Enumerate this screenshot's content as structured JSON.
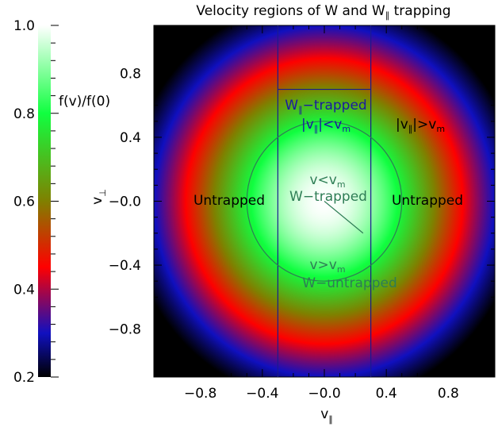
{
  "chart_data": {
    "type": "heatmap",
    "title": "Velocity regions of W and W∥ trapping",
    "title_main": "Velocity regions of W and W",
    "title_sub": "∥",
    "title_tail": " trapping",
    "xlabel_main": "v",
    "xlabel_sub": "∥",
    "ylabel_main": "v",
    "ylabel_sub": "⊥",
    "xlim": [
      -1.1,
      1.1
    ],
    "ylim": [
      -1.1,
      1.1
    ],
    "x_ticks": [
      -0.8,
      -0.4,
      0.0,
      0.4,
      0.8
    ],
    "x_tick_labels": [
      "−0.8",
      "−0.4",
      "−0.0",
      "0.4",
      "0.8"
    ],
    "y_ticks": [
      0.8,
      0.4,
      0.0,
      -0.4,
      -0.8
    ],
    "y_tick_labels": [
      "0.8",
      "0.4",
      "−0.0",
      "−0.4",
      "−0.8"
    ],
    "field": "f(v)/f(0) = exp(-(v∥² + v⊥²))",
    "colorbar": {
      "label": "f(v)/f(0)",
      "range": [
        0.2,
        1.0
      ],
      "ticks": [
        1.0,
        0.8,
        0.6,
        0.4,
        0.2
      ],
      "tick_labels": [
        "1.0",
        "0.8",
        "0.6",
        "0.4",
        "0.2"
      ],
      "colors": [
        "#000000",
        "#1010c0",
        "#ff0000",
        "#808000",
        "#10ff40",
        "#ffffff"
      ],
      "color_stops": [
        0.2,
        0.3,
        0.45,
        0.6,
        0.8,
        1.0
      ]
    },
    "regions": {
      "parallel_trap_bounds": [
        -0.3,
        0.3
      ],
      "parallel_trap_top": 0.7,
      "circle_radius": 0.5,
      "circle_radius_line": {
        "from": [
          0.0,
          0.0
        ],
        "to": [
          0.25,
          -0.2
        ]
      }
    },
    "annotations": {
      "wpar_trapped_main": "W",
      "wpar_trapped_sub": "∥",
      "wpar_trapped_tail": "−trapped",
      "vpar_lt_a": "|v",
      "vpar_lt_sub": "∥",
      "vpar_lt_b": "|<v",
      "vpar_lt_m": "m",
      "vpar_gt_a": "|v",
      "vpar_gt_sub": "∥",
      "vpar_gt_b": "|>v",
      "vpar_gt_m": "m",
      "v_lt_a": "v<v",
      "v_lt_m": "m",
      "w_trapped": "W−trapped",
      "v_gt_a": "v>v",
      "v_gt_m": "m",
      "w_untrapped": "W−untrapped",
      "untrapped_left": "Untrapped",
      "untrapped_right": "Untrapped"
    }
  }
}
